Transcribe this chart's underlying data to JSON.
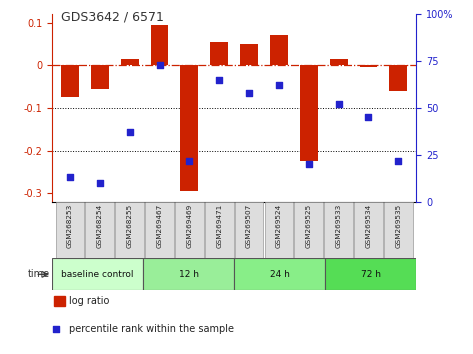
{
  "title": "GDS3642 / 6571",
  "samples": [
    "GSM268253",
    "GSM268254",
    "GSM268255",
    "GSM269467",
    "GSM269469",
    "GSM269471",
    "GSM269507",
    "GSM269524",
    "GSM269525",
    "GSM269533",
    "GSM269534",
    "GSM269535"
  ],
  "log_ratio": [
    -0.075,
    -0.055,
    0.015,
    0.095,
    -0.295,
    0.055,
    0.05,
    0.07,
    -0.225,
    0.015,
    -0.005,
    -0.06
  ],
  "percentile": [
    13,
    10,
    37,
    73,
    22,
    65,
    58,
    62,
    20,
    52,
    45,
    22
  ],
  "bar_color": "#cc2200",
  "dot_color": "#2222cc",
  "zero_line_color": "#cc2200",
  "dotted_line_color": "#000000",
  "ylim_left": [
    -0.32,
    0.12
  ],
  "ylim_right": [
    0,
    100
  ],
  "groups": [
    {
      "label": "baseline control",
      "start": 0,
      "end": 3
    },
    {
      "label": "12 h",
      "start": 3,
      "end": 6
    },
    {
      "label": "24 h",
      "start": 6,
      "end": 9
    },
    {
      "label": "72 h",
      "start": 9,
      "end": 12
    }
  ],
  "group_colors": [
    "#ccffcc",
    "#99ee99",
    "#88ee88",
    "#55dd55"
  ],
  "time_label": "time",
  "legend1": "log ratio",
  "legend2": "percentile rank within the sample",
  "bar_width": 0.6,
  "box_color": "#dddddd",
  "box_edge_color": "#999999",
  "background": "#ffffff"
}
